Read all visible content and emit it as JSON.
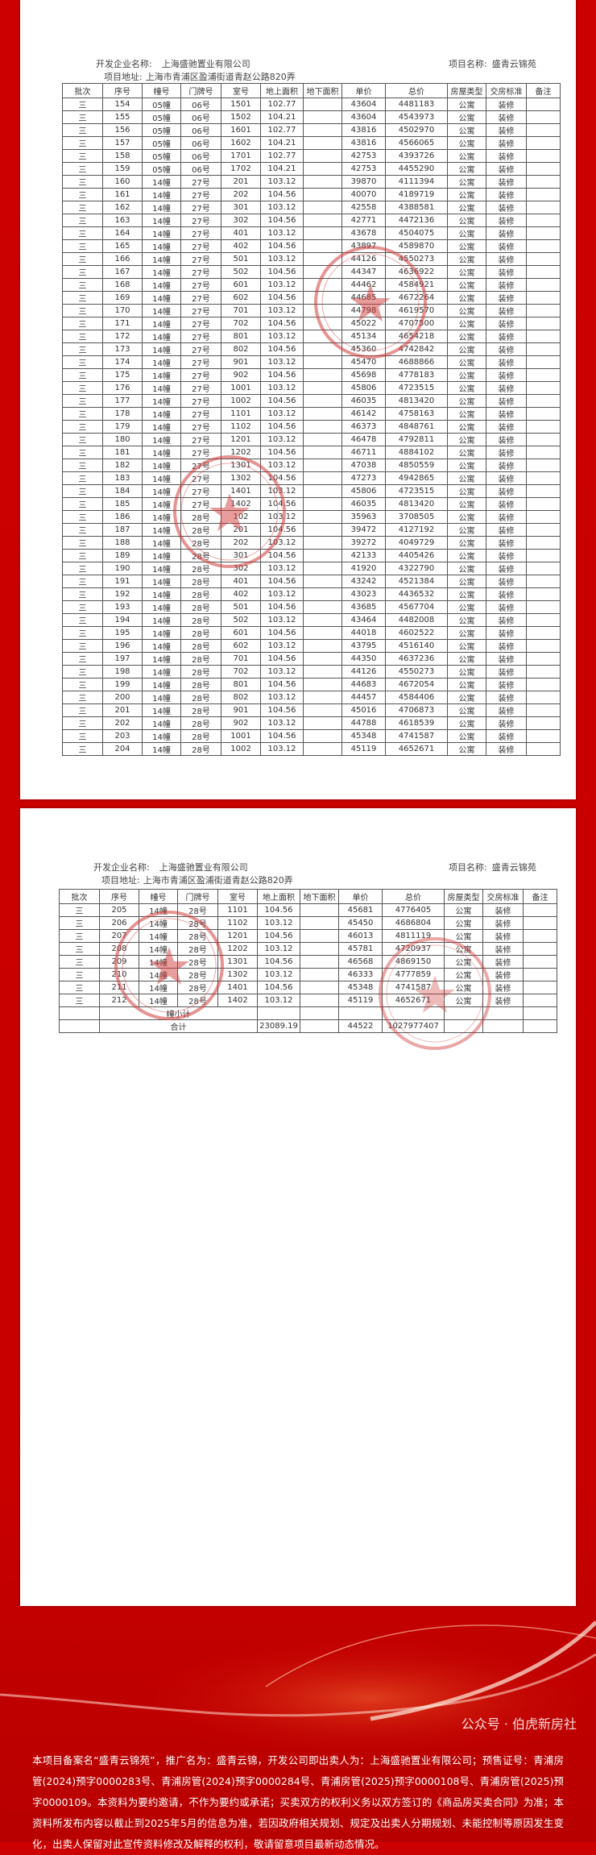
{
  "labels": {
    "developer_label": "开发企业名称:",
    "developer": "上海盛驰置业有限公司",
    "project_label": "项目名称:",
    "project": "盛青云锦苑",
    "address_label": "项目地址:",
    "address": "上海市青浦区盈浦街道青赵公路820弄"
  },
  "columns": [
    "批次",
    "序号",
    "幢号",
    "门牌号",
    "室号",
    "地上面积",
    "地下面积",
    "单价",
    "总价",
    "房屋类型",
    "交房标准",
    "备注"
  ],
  "page1_rows": [
    [
      "三",
      "154",
      "05幢",
      "06号",
      "1501",
      "102.77",
      "",
      "43604",
      "4481183",
      "公寓",
      "装修",
      ""
    ],
    [
      "三",
      "155",
      "05幢",
      "06号",
      "1502",
      "104.21",
      "",
      "43604",
      "4543973",
      "公寓",
      "装修",
      ""
    ],
    [
      "三",
      "156",
      "05幢",
      "06号",
      "1601",
      "102.77",
      "",
      "43816",
      "4502970",
      "公寓",
      "装修",
      ""
    ],
    [
      "三",
      "157",
      "05幢",
      "06号",
      "1602",
      "104.21",
      "",
      "43816",
      "4566065",
      "公寓",
      "装修",
      ""
    ],
    [
      "三",
      "158",
      "05幢",
      "06号",
      "1701",
      "102.77",
      "",
      "42753",
      "4393726",
      "公寓",
      "装修",
      ""
    ],
    [
      "三",
      "159",
      "05幢",
      "06号",
      "1702",
      "104.21",
      "",
      "42753",
      "4455290",
      "公寓",
      "装修",
      ""
    ],
    [
      "三",
      "160",
      "14幢",
      "27号",
      "201",
      "103.12",
      "",
      "39870",
      "4111394",
      "公寓",
      "装修",
      ""
    ],
    [
      "三",
      "161",
      "14幢",
      "27号",
      "202",
      "104.56",
      "",
      "40070",
      "4189719",
      "公寓",
      "装修",
      ""
    ],
    [
      "三",
      "162",
      "14幢",
      "27号",
      "301",
      "103.12",
      "",
      "42558",
      "4388581",
      "公寓",
      "装修",
      ""
    ],
    [
      "三",
      "163",
      "14幢",
      "27号",
      "302",
      "104.56",
      "",
      "42771",
      "4472136",
      "公寓",
      "装修",
      ""
    ],
    [
      "三",
      "164",
      "14幢",
      "27号",
      "401",
      "103.12",
      "",
      "43678",
      "4504075",
      "公寓",
      "装修",
      ""
    ],
    [
      "三",
      "165",
      "14幢",
      "27号",
      "402",
      "104.56",
      "",
      "43897",
      "4589870",
      "公寓",
      "装修",
      ""
    ],
    [
      "三",
      "166",
      "14幢",
      "27号",
      "501",
      "103.12",
      "",
      "44126",
      "4550273",
      "公寓",
      "装修",
      ""
    ],
    [
      "三",
      "167",
      "14幢",
      "27号",
      "502",
      "104.56",
      "",
      "44347",
      "4636922",
      "公寓",
      "装修",
      ""
    ],
    [
      "三",
      "168",
      "14幢",
      "27号",
      "601",
      "103.12",
      "",
      "44462",
      "4584921",
      "公寓",
      "装修",
      ""
    ],
    [
      "三",
      "169",
      "14幢",
      "27号",
      "602",
      "104.56",
      "",
      "44685",
      "4672264",
      "公寓",
      "装修",
      ""
    ],
    [
      "三",
      "170",
      "14幢",
      "27号",
      "701",
      "103.12",
      "",
      "44798",
      "4619570",
      "公寓",
      "装修",
      ""
    ],
    [
      "三",
      "171",
      "14幢",
      "27号",
      "702",
      "104.56",
      "",
      "45022",
      "4707500",
      "公寓",
      "装修",
      ""
    ],
    [
      "三",
      "172",
      "14幢",
      "27号",
      "801",
      "103.12",
      "",
      "45134",
      "4654218",
      "公寓",
      "装修",
      ""
    ],
    [
      "三",
      "173",
      "14幢",
      "27号",
      "802",
      "104.56",
      "",
      "45360",
      "4742842",
      "公寓",
      "装修",
      ""
    ],
    [
      "三",
      "174",
      "14幢",
      "27号",
      "901",
      "103.12",
      "",
      "45470",
      "4688866",
      "公寓",
      "装修",
      ""
    ],
    [
      "三",
      "175",
      "14幢",
      "27号",
      "902",
      "104.56",
      "",
      "45698",
      "4778183",
      "公寓",
      "装修",
      ""
    ],
    [
      "三",
      "176",
      "14幢",
      "27号",
      "1001",
      "103.12",
      "",
      "45806",
      "4723515",
      "公寓",
      "装修",
      ""
    ],
    [
      "三",
      "177",
      "14幢",
      "27号",
      "1002",
      "104.56",
      "",
      "46035",
      "4813420",
      "公寓",
      "装修",
      ""
    ],
    [
      "三",
      "178",
      "14幢",
      "27号",
      "1101",
      "103.12",
      "",
      "46142",
      "4758163",
      "公寓",
      "装修",
      ""
    ],
    [
      "三",
      "179",
      "14幢",
      "27号",
      "1102",
      "104.56",
      "",
      "46373",
      "4848761",
      "公寓",
      "装修",
      ""
    ],
    [
      "三",
      "180",
      "14幢",
      "27号",
      "1201",
      "103.12",
      "",
      "46478",
      "4792811",
      "公寓",
      "装修",
      ""
    ],
    [
      "三",
      "181",
      "14幢",
      "27号",
      "1202",
      "104.56",
      "",
      "46711",
      "4884102",
      "公寓",
      "装修",
      ""
    ],
    [
      "三",
      "182",
      "14幢",
      "27号",
      "1301",
      "103.12",
      "",
      "47038",
      "4850559",
      "公寓",
      "装修",
      ""
    ],
    [
      "三",
      "183",
      "14幢",
      "27号",
      "1302",
      "104.56",
      "",
      "47273",
      "4942865",
      "公寓",
      "装修",
      ""
    ],
    [
      "三",
      "184",
      "14幢",
      "27号",
      "1401",
      "103.12",
      "",
      "45806",
      "4723515",
      "公寓",
      "装修",
      ""
    ],
    [
      "三",
      "185",
      "14幢",
      "27号",
      "1402",
      "104.56",
      "",
      "46035",
      "4813420",
      "公寓",
      "装修",
      ""
    ],
    [
      "三",
      "186",
      "14幢",
      "28号",
      "102",
      "103.12",
      "",
      "35963",
      "3708505",
      "公寓",
      "装修",
      ""
    ],
    [
      "三",
      "187",
      "14幢",
      "28号",
      "201",
      "104.56",
      "",
      "39472",
      "4127192",
      "公寓",
      "装修",
      ""
    ],
    [
      "三",
      "188",
      "14幢",
      "28号",
      "202",
      "103.12",
      "",
      "39272",
      "4049729",
      "公寓",
      "装修",
      ""
    ],
    [
      "三",
      "189",
      "14幢",
      "28号",
      "301",
      "104.56",
      "",
      "42133",
      "4405426",
      "公寓",
      "装修",
      ""
    ],
    [
      "三",
      "190",
      "14幢",
      "28号",
      "302",
      "103.12",
      "",
      "41920",
      "4322790",
      "公寓",
      "装修",
      ""
    ],
    [
      "三",
      "191",
      "14幢",
      "28号",
      "401",
      "104.56",
      "",
      "43242",
      "4521384",
      "公寓",
      "装修",
      ""
    ],
    [
      "三",
      "192",
      "14幢",
      "28号",
      "402",
      "103.12",
      "",
      "43023",
      "4436532",
      "公寓",
      "装修",
      ""
    ],
    [
      "三",
      "193",
      "14幢",
      "28号",
      "501",
      "104.56",
      "",
      "43685",
      "4567704",
      "公寓",
      "装修",
      ""
    ],
    [
      "三",
      "194",
      "14幢",
      "28号",
      "502",
      "103.12",
      "",
      "43464",
      "4482008",
      "公寓",
      "装修",
      ""
    ],
    [
      "三",
      "195",
      "14幢",
      "28号",
      "601",
      "104.56",
      "",
      "44018",
      "4602522",
      "公寓",
      "装修",
      ""
    ],
    [
      "三",
      "196",
      "14幢",
      "28号",
      "602",
      "103.12",
      "",
      "43795",
      "4516140",
      "公寓",
      "装修",
      ""
    ],
    [
      "三",
      "197",
      "14幢",
      "28号",
      "701",
      "104.56",
      "",
      "44350",
      "4637236",
      "公寓",
      "装修",
      ""
    ],
    [
      "三",
      "198",
      "14幢",
      "28号",
      "702",
      "103.12",
      "",
      "44126",
      "4550273",
      "公寓",
      "装修",
      ""
    ],
    [
      "三",
      "199",
      "14幢",
      "28号",
      "801",
      "104.56",
      "",
      "44683",
      "4672054",
      "公寓",
      "装修",
      ""
    ],
    [
      "三",
      "200",
      "14幢",
      "28号",
      "802",
      "103.12",
      "",
      "44457",
      "4584406",
      "公寓",
      "装修",
      ""
    ],
    [
      "三",
      "201",
      "14幢",
      "28号",
      "901",
      "104.56",
      "",
      "45016",
      "4706873",
      "公寓",
      "装修",
      ""
    ],
    [
      "三",
      "202",
      "14幢",
      "28号",
      "902",
      "103.12",
      "",
      "44788",
      "4618539",
      "公寓",
      "装修",
      ""
    ],
    [
      "三",
      "203",
      "14幢",
      "28号",
      "1001",
      "104.56",
      "",
      "45348",
      "4741587",
      "公寓",
      "装修",
      ""
    ],
    [
      "三",
      "204",
      "14幢",
      "28号",
      "1002",
      "103.12",
      "",
      "45119",
      "4652671",
      "公寓",
      "装修",
      ""
    ]
  ],
  "page2_rows": [
    [
      "三",
      "205",
      "14幢",
      "28号",
      "1101",
      "104.56",
      "",
      "45681",
      "4776405",
      "公寓",
      "装修",
      ""
    ],
    [
      "三",
      "206",
      "14幢",
      "28号",
      "1102",
      "103.12",
      "",
      "45450",
      "4686804",
      "公寓",
      "装修",
      ""
    ],
    [
      "三",
      "207",
      "14幢",
      "28号",
      "1201",
      "104.56",
      "",
      "46013",
      "4811119",
      "公寓",
      "装修",
      ""
    ],
    [
      "三",
      "208",
      "14幢",
      "28号",
      "1202",
      "103.12",
      "",
      "45781",
      "4720937",
      "公寓",
      "装修",
      ""
    ],
    [
      "三",
      "209",
      "14幢",
      "28号",
      "1301",
      "104.56",
      "",
      "46568",
      "4869150",
      "公寓",
      "装修",
      ""
    ],
    [
      "三",
      "210",
      "14幢",
      "28号",
      "1302",
      "103.12",
      "",
      "46333",
      "4777859",
      "公寓",
      "装修",
      ""
    ],
    [
      "三",
      "211",
      "14幢",
      "28号",
      "1401",
      "104.56",
      "",
      "45348",
      "4741587",
      "公寓",
      "装修",
      ""
    ],
    [
      "三",
      "212",
      "14幢",
      "28号",
      "1402",
      "103.12",
      "",
      "45119",
      "4652671",
      "公寓",
      "装修",
      ""
    ]
  ],
  "summary": {
    "subtotal_label": "幢小计",
    "total_label": "合计",
    "total_area": "23089.19",
    "avg_price": "44522",
    "total_price": "1027977407"
  },
  "footer": {
    "disclaimer": "本项目备案名“盛青云锦苑”，推广名为：盛青云锦，开发公司即出卖人为：上海盛驰置业有限公司；预售证号：青浦房管(2024)预字0000283号、青浦房管(2024)预字0000284号、青浦房管(2025)预字0000108号、青浦房管(2025)预字0000109。本资料为要约邀请，不作为要约或承诺；买卖双方的权利义务以双方签订的《商品房买卖合同》为准；本资料所发布内容以截止到2025年5月的信息为准，若因政府相关规划、规定及出卖人分期规划、未能控制等原因发生变化，出卖人保留对此宣传资料修改及解释的权利，敬请留意项目最新动态情况。",
    "watermark": "公众号 · 伯虎新房社"
  },
  "colors": {
    "background": "#cc0000",
    "stamp": "#d23a3a",
    "paper": "#ffffff"
  }
}
